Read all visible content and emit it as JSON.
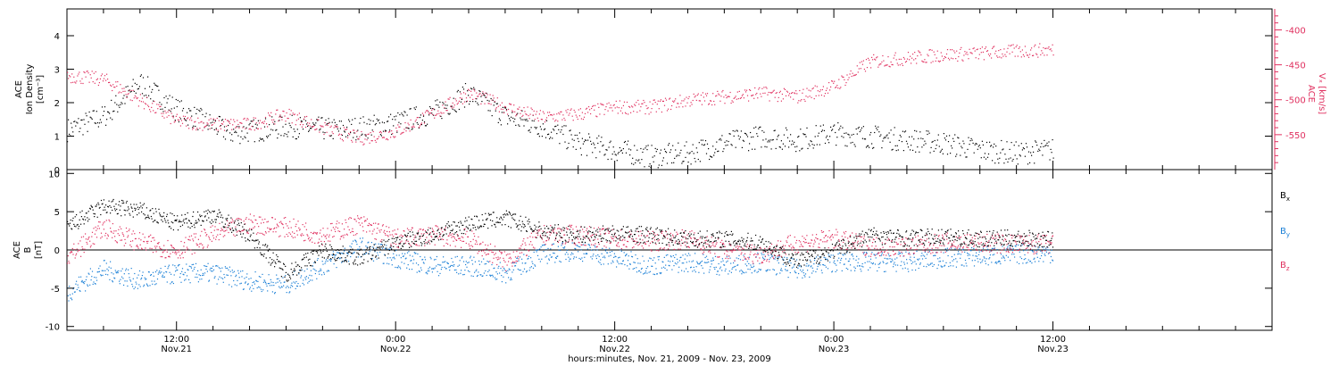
{
  "colors": {
    "axis": "#000000",
    "density": "#000000",
    "vx": "#e0305f",
    "bx": "#000000",
    "by": "#1a7fd6",
    "bz": "#e0305f"
  },
  "chart_data": [
    {
      "type": "scatter",
      "panel": "top",
      "ylabel_lines": [
        "ACE",
        "Ion Density",
        "[cm⁻³]"
      ],
      "ylim": [
        0,
        4.8
      ],
      "yticks": [
        0,
        1,
        2,
        3,
        4
      ],
      "ytick_labels": [
        "0",
        "1",
        "2",
        "3",
        "4"
      ],
      "right_axis": {
        "ylabel_lines": [
          "ACE",
          "Vₓ [km/s]"
        ],
        "ylim": [
          -600,
          -370
        ],
        "yticks": [
          -400,
          -450,
          -500,
          -550
        ],
        "ytick_labels": [
          "-400",
          "-450",
          "-500",
          "-550"
        ]
      },
      "series": [
        {
          "key": "density",
          "axis": "left",
          "knots_hours": [
            0,
            2,
            4,
            6,
            9,
            12,
            15,
            18,
            20,
            22,
            24,
            26,
            28,
            30,
            32,
            34,
            36,
            38,
            40,
            42,
            44,
            46,
            48,
            50,
            52,
            54
          ],
          "knots_values": [
            1.2,
            1.6,
            2.6,
            1.8,
            1.1,
            1.3,
            1.2,
            1.4,
            1.7,
            2.3,
            1.6,
            1.3,
            0.8,
            0.6,
            0.4,
            0.5,
            0.8,
            1.0,
            0.9,
            1.1,
            1.0,
            0.9,
            0.8,
            0.6,
            0.5,
            0.6
          ]
        },
        {
          "key": "vx",
          "axis": "right",
          "knots_hours": [
            0,
            2,
            4,
            6,
            8,
            10,
            12,
            14,
            16,
            18,
            20,
            22,
            24,
            26,
            28,
            30,
            32,
            34,
            36,
            38,
            40,
            42,
            44,
            46,
            48,
            50,
            52,
            54
          ],
          "knots_values": [
            -465,
            -470,
            -500,
            -530,
            -535,
            -535,
            -520,
            -540,
            -555,
            -545,
            -520,
            -490,
            -510,
            -525,
            -520,
            -510,
            -510,
            -500,
            -495,
            -490,
            -495,
            -480,
            -445,
            -440,
            -435,
            -433,
            -430,
            -428
          ]
        }
      ]
    },
    {
      "type": "scatter",
      "panel": "bottom",
      "ylabel_lines": [
        "ACE",
        "B",
        "[nT]"
      ],
      "ylim": [
        -10.5,
        10.5
      ],
      "yticks": [
        -10,
        -5,
        0,
        5,
        10
      ],
      "ytick_labels": [
        "-10",
        "-5",
        "0",
        "5",
        "10"
      ],
      "zero_line": true,
      "legend_position": "right",
      "legend": [
        {
          "label": "B",
          "sub": "x",
          "key": "bx"
        },
        {
          "label": "B",
          "sub": "y",
          "key": "by"
        },
        {
          "label": "B",
          "sub": "z",
          "key": "bz"
        }
      ],
      "series": [
        {
          "key": "bx",
          "knots_hours": [
            0,
            2,
            4,
            6,
            8,
            10,
            12,
            14,
            16,
            18,
            20,
            22,
            24,
            26,
            28,
            30,
            32,
            34,
            36,
            38,
            40,
            42,
            44,
            46,
            48,
            50,
            52,
            54
          ],
          "knots_values": [
            3.0,
            5.8,
            5.2,
            3.5,
            4.7,
            2.0,
            -3.0,
            0.0,
            -1.0,
            1.0,
            2.0,
            3.5,
            4.2,
            2.5,
            2.0,
            2.2,
            2.0,
            1.5,
            1.5,
            1.0,
            -1.5,
            0.0,
            2.0,
            1.6,
            1.8,
            1.5,
            1.6,
            1.4
          ]
        },
        {
          "key": "by",
          "knots_hours": [
            0,
            2,
            4,
            6,
            8,
            10,
            12,
            14,
            16,
            18,
            20,
            22,
            24,
            26,
            28,
            30,
            32,
            34,
            36,
            38,
            40,
            42,
            44,
            46,
            48,
            50,
            52,
            54
          ],
          "knots_values": [
            -5.5,
            -2.5,
            -4.0,
            -3.0,
            -3.0,
            -4.0,
            -4.5,
            -2.0,
            0.5,
            -1.0,
            -2.0,
            -2.0,
            -3.0,
            -0.5,
            0.0,
            -1.0,
            -2.0,
            -1.5,
            -2.0,
            -1.5,
            -2.5,
            -1.5,
            -1.5,
            -1.5,
            -1.0,
            -0.8,
            -0.5,
            -0.3
          ]
        },
        {
          "key": "bz",
          "knots_hours": [
            0,
            2,
            4,
            6,
            8,
            10,
            12,
            14,
            16,
            18,
            20,
            22,
            24,
            26,
            28,
            30,
            32,
            34,
            36,
            38,
            40,
            42,
            44,
            46,
            48,
            50,
            52,
            54
          ],
          "knots_values": [
            -1.0,
            3.0,
            1.0,
            0.0,
            2.0,
            3.5,
            3.0,
            2.0,
            3.5,
            1.5,
            2.0,
            1.5,
            -1.5,
            2.0,
            2.0,
            1.5,
            1.2,
            1.5,
            0.0,
            -0.5,
            1.0,
            1.5,
            0.5,
            0.5,
            1.0,
            1.0,
            0.8,
            0.8
          ]
        }
      ]
    }
  ],
  "x_axis": {
    "title": "hours:minutes, Nov. 21, 2009 - Nov. 23, 2009",
    "xlim_hours": [
      0,
      66
    ],
    "ticks": [
      {
        "hours": 6,
        "time": "12:00",
        "date": "Nov.21"
      },
      {
        "hours": 18,
        "time": "0:00",
        "date": "Nov.22"
      },
      {
        "hours": 30,
        "time": "12:00",
        "date": "Nov.22"
      },
      {
        "hours": 42,
        "time": "0:00",
        "date": "Nov.23"
      },
      {
        "hours": 54,
        "time": "12:00",
        "date": "Nov.23"
      }
    ]
  }
}
